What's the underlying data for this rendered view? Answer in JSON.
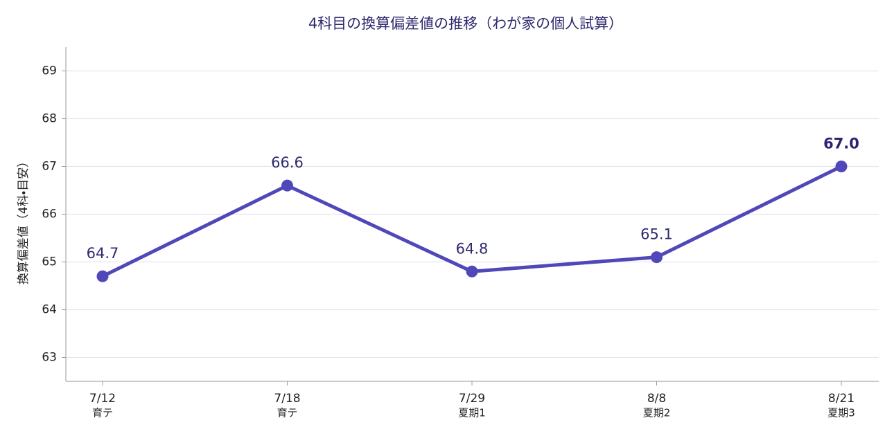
{
  "chart_data": {
    "type": "line",
    "title": "4科目の換算偏差値の推移（わが家の個人試算）",
    "y_label": "換算偏差値（4科・目安）",
    "categories": [
      [
        "7/12",
        "育テ"
      ],
      [
        "7/18",
        "育テ"
      ],
      [
        "7/29",
        "夏期1"
      ],
      [
        "8/8",
        "夏期2"
      ],
      [
        "8/21",
        "夏期3"
      ]
    ],
    "values": [
      64.7,
      66.6,
      64.8,
      65.1,
      67.0
    ],
    "value_labels": [
      "64.7",
      "66.6",
      "64.8",
      "65.1",
      "67.0"
    ],
    "color": "#5048b8",
    "ylim": [
      62.5,
      69.5
    ],
    "yticks": [
      63,
      64,
      65,
      66,
      67,
      68,
      69
    ],
    "grid": true
  }
}
